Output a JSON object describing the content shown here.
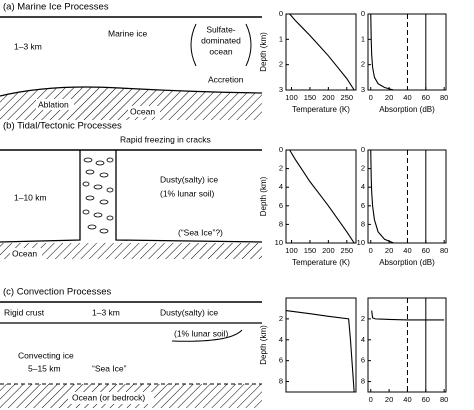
{
  "panels": [
    {
      "title": "(a) Marine Ice Processes",
      "ice": "Marine ice",
      "thickness": "1–3 km",
      "ocean_note": [
        "Sulfate-",
        "dominated",
        "ocean"
      ],
      "accretion": "Accretion",
      "ablation": "Ablation",
      "ocean": "Ocean"
    },
    {
      "title": "(b) Tidal/Tectonic Processes",
      "cracks": "Rapid freezing in cracks",
      "thickness": "1–10 km",
      "ice": "Dusty(salty) ice",
      "soil": "(1% lunar soil)",
      "sea_ice": "(“Sea Ice”?)",
      "ocean": "Ocean"
    },
    {
      "title": "(c) Convection Processes",
      "crust": "Rigid crust",
      "crust_thickness": "1–3 km",
      "ice": "Dusty(salty) ice",
      "soil": "(1% lunar soil)",
      "convecting": "Convecting ice",
      "thickness": "5–15 km",
      "sea_ice": "“Sea Ice”",
      "ocean": "Ocean (or bedrock)"
    }
  ],
  "chart_data": [
    {
      "type": "line",
      "ylabel": "Depth (km)",
      "xlabel": "Temperature (K)",
      "color": "#000000",
      "y_inverted": true,
      "x": [
        95,
        110,
        130,
        150,
        175,
        200,
        225,
        250,
        270
      ],
      "values": [
        0,
        0.25,
        0.55,
        0.85,
        1.25,
        1.65,
        2.1,
        2.55,
        3
      ],
      "xlim": [
        85,
        275
      ],
      "xticks": [
        100,
        150,
        200,
        250
      ],
      "ylim": [
        0,
        3
      ],
      "yticks": [
        0,
        1,
        2,
        3
      ]
    },
    {
      "type": "line",
      "xlabel": "Absorption (dB)",
      "color": "#000000",
      "y_inverted": true,
      "x": [
        0,
        0.5,
        1,
        2,
        4,
        8,
        15,
        25
      ],
      "values": [
        0,
        1,
        1.6,
        2.1,
        2.5,
        2.75,
        2.9,
        3
      ],
      "xlim": [
        -3,
        82
      ],
      "xticks": [
        0,
        20,
        40,
        60,
        80
      ],
      "ylim": [
        0,
        3
      ],
      "yticks": [
        0,
        1,
        2,
        3
      ],
      "vlines": [
        {
          "value": 40,
          "style": "dashed"
        },
        {
          "value": 60,
          "style": "solid"
        }
      ]
    },
    {
      "type": "line",
      "ylabel": "Depth (km)",
      "xlabel": "Temperature (K)",
      "color": "#000000",
      "y_inverted": true,
      "x": [
        95,
        110,
        130,
        150,
        175,
        200,
        225,
        250,
        270
      ],
      "values": [
        0,
        1,
        2.2,
        3.4,
        4.7,
        6,
        7.4,
        8.8,
        10
      ],
      "xlim": [
        85,
        275
      ],
      "xticks": [
        100,
        150,
        200,
        250
      ],
      "ylim": [
        0,
        10
      ],
      "yticks": [
        0,
        2,
        4,
        6,
        8,
        10
      ]
    },
    {
      "type": "line",
      "xlabel": "Absorption (dB)",
      "color": "#000000",
      "y_inverted": true,
      "x": [
        0,
        0.5,
        1,
        2,
        4,
        8,
        15,
        25
      ],
      "values": [
        0,
        3,
        4.5,
        6,
        7.5,
        8.8,
        9.6,
        10
      ],
      "xlim": [
        -3,
        82
      ],
      "xticks": [
        0,
        20,
        40,
        60,
        80
      ],
      "ylim": [
        0,
        10
      ],
      "yticks": [
        0,
        2,
        4,
        6,
        8,
        10
      ],
      "vlines": [
        {
          "value": 40,
          "style": "dashed"
        },
        {
          "value": 60,
          "style": "solid"
        }
      ]
    },
    {
      "type": "line",
      "ylabel": "Depth (km)",
      "color": "#000000",
      "y_inverted": true,
      "x": [
        85,
        150,
        200,
        255,
        260,
        265,
        270
      ],
      "values": [
        1.2,
        1.5,
        1.75,
        2,
        4,
        6.5,
        9
      ],
      "xlim": [
        85,
        275
      ],
      "ylim": [
        0,
        9
      ],
      "yticks": [
        2,
        4,
        6,
        8
      ]
    },
    {
      "type": "line",
      "color": "#000000",
      "y_inverted": true,
      "x": [
        1,
        2,
        5,
        20,
        40,
        60,
        80
      ],
      "values": [
        1.2,
        1.9,
        2,
        2.05,
        2.1,
        2.1,
        2.1
      ],
      "xlim": [
        -3,
        82
      ],
      "xticks": [
        0,
        20,
        40,
        60,
        80
      ],
      "ylim": [
        0,
        9
      ],
      "yticks": [
        2,
        4,
        6,
        8
      ],
      "vlines": [
        {
          "value": 40,
          "style": "dashed"
        },
        {
          "value": 60,
          "style": "solid"
        }
      ]
    }
  ]
}
